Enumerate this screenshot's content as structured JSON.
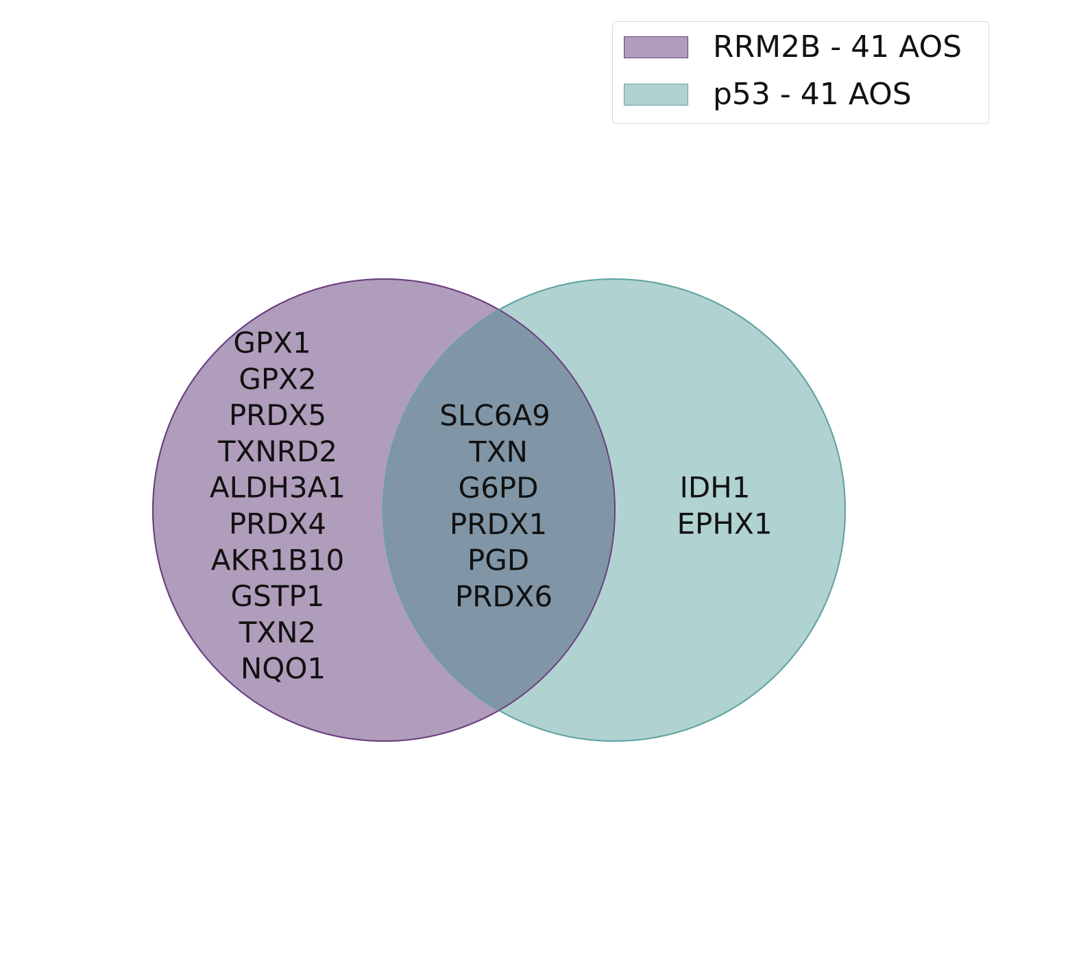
{
  "legend": {
    "items": [
      {
        "label": "RRM2B - 41 AOS",
        "color": "#b09cbb",
        "stroke": "#6a3f80"
      },
      {
        "label": "p53 - 41 AOS",
        "color": "#b0d2d1",
        "stroke": "#5fa3a0"
      }
    ]
  },
  "venn": {
    "overlap_color": "#8096a6",
    "sets": [
      {
        "name": "RRM2B - 41 AOS",
        "color": "#b09cbb",
        "stroke": "#6a3f80"
      },
      {
        "name": "p53 - 41 AOS",
        "color": "#b0d2d1",
        "stroke": "#5fa3a0"
      }
    ],
    "regions": {
      "left_only": [
        "GPX1",
        "GPX2",
        "PRDX5",
        "TXNRD2",
        "ALDH3A1",
        "PRDX4",
        "AKR1B10",
        "GSTP1",
        "TXN2",
        "NQO1"
      ],
      "intersection": [
        "SLC6A9",
        "TXN",
        "G6PD",
        "PRDX1",
        "PGD",
        "PRDX6"
      ],
      "right_only": [
        "IDH1",
        "EPHX1"
      ]
    }
  }
}
